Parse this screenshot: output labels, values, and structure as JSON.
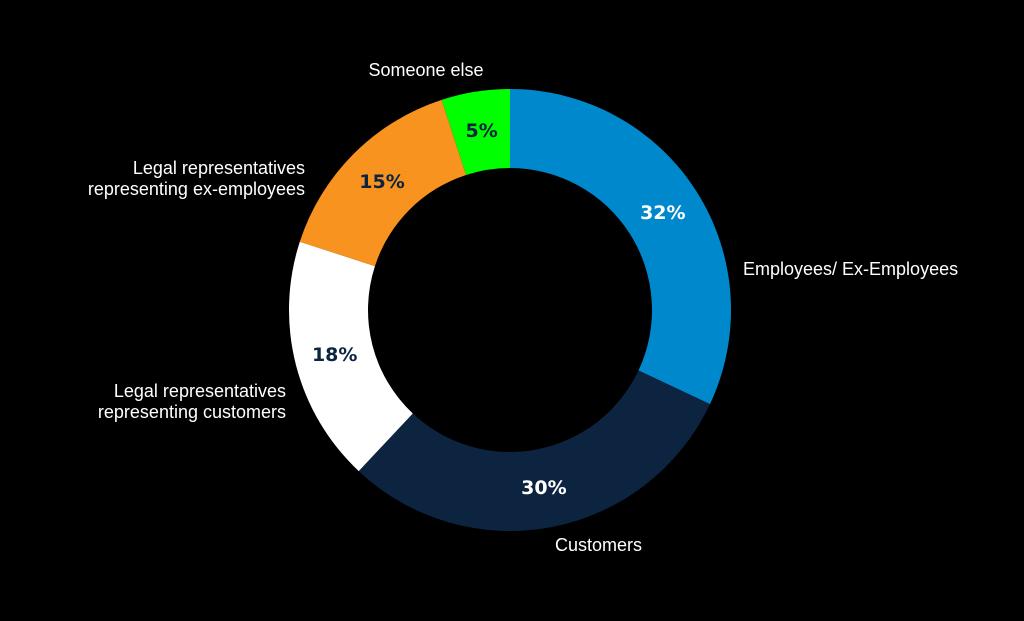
{
  "chart_data": {
    "type": "pie",
    "variant": "donut",
    "title": "",
    "slices": [
      {
        "label": "Employees/ Ex-Employees",
        "label_lines": [
          "Employees/ Ex-Employees"
        ],
        "value": 32,
        "display": "32%",
        "color": "#0088cc",
        "text_color": "#ffffff",
        "label_anchor": "start"
      },
      {
        "label": "Customers",
        "label_lines": [
          "Customers"
        ],
        "value": 30,
        "display": "30%",
        "color": "#0c2440",
        "text_color": "#ffffff",
        "label_anchor": "start"
      },
      {
        "label": "Legal representatives representing customers",
        "label_lines": [
          "Legal representatives",
          "representing customers"
        ],
        "value": 18,
        "display": "18%",
        "color": "#ffffff",
        "text_color": "#0c2440",
        "label_anchor": "end"
      },
      {
        "label": "Legal representatives representing ex-employees",
        "label_lines": [
          "Legal representatives",
          "representing ex-employees"
        ],
        "value": 15,
        "display": "15%",
        "color": "#f7931e",
        "text_color": "#0c2440",
        "label_anchor": "end"
      },
      {
        "label": "Someone else",
        "label_lines": [
          "Someone else"
        ],
        "value": 5,
        "display": "5%",
        "color": "#00ff00",
        "text_color": "#0c2440",
        "label_anchor": "middle"
      }
    ],
    "start_angle_deg": 0,
    "direction": "clockwise",
    "background": "#000000"
  }
}
